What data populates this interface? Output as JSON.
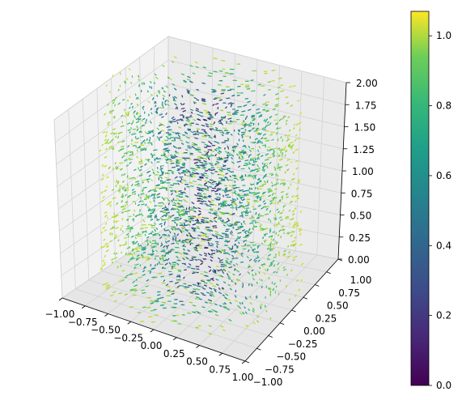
{
  "chart_data": {
    "type": "scatter",
    "projection": "3d",
    "description_of_content": "",
    "x_ticks": [
      "−1.00",
      "−0.75",
      "−0.50",
      "−0.25",
      "0.00",
      "0.25",
      "0.50",
      "0.75",
      "1.00"
    ],
    "y_ticks": [
      "−1.00",
      "−0.75",
      "−0.50",
      "−0.25",
      "0.00",
      "0.25",
      "0.50",
      "0.75",
      "1.00"
    ],
    "z_ticks": [
      "0.00",
      "0.25",
      "0.50",
      "0.75",
      "1.00",
      "1.25",
      "1.50",
      "1.75",
      "2.00"
    ],
    "xlim": [
      -1,
      1
    ],
    "ylim": [
      -1,
      1
    ],
    "zlim": [
      0,
      2
    ],
    "grid": true,
    "colorbar": {
      "colormap": "viridis",
      "range": [
        0.0,
        1.07
      ],
      "ticks": [
        "0.0",
        "0.2",
        "0.4",
        "0.6",
        "0.8",
        "1.0"
      ],
      "tick_values": [
        0.0,
        0.2,
        0.4,
        0.6,
        0.8,
        1.0
      ]
    },
    "points_model": {
      "shape": "quiver field inside a cylinder of radius 1",
      "color_value": "radial distance from z-axis",
      "radius_range": [
        0.0,
        1.0
      ],
      "height_range": [
        0.0,
        2.0
      ]
    }
  }
}
